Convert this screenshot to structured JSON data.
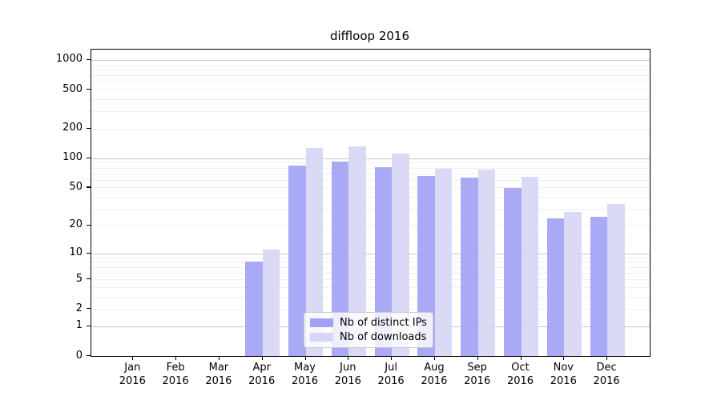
{
  "chart_data": {
    "type": "bar",
    "title": "diffloop 2016",
    "categories": [
      "Jan 2016",
      "Feb 2016",
      "Mar 2016",
      "Apr 2016",
      "May 2016",
      "Jun 2016",
      "Jul 2016",
      "Aug 2016",
      "Sep 2016",
      "Oct 2016",
      "Nov 2016",
      "Dec 2016"
    ],
    "month_labels": [
      "Jan",
      "Feb",
      "Mar",
      "Apr",
      "May",
      "Jun",
      "Jul",
      "Aug",
      "Sep",
      "Oct",
      "Nov",
      "Dec"
    ],
    "year_label": "2016",
    "series": [
      {
        "name": "Nb of distinct IPs",
        "color": "#a0a0f4",
        "values": [
          0,
          0,
          0,
          8,
          84,
          93,
          81,
          66,
          63,
          49,
          24,
          25
        ]
      },
      {
        "name": "Nb of downloads",
        "color": "#d6d6f6",
        "values": [
          0,
          0,
          0,
          11,
          128,
          132,
          112,
          78,
          77,
          65,
          28,
          34
        ]
      }
    ],
    "xlabel": "",
    "ylabel": "",
    "y_axis": {
      "scale": "log1p",
      "tick_values": [
        0,
        1,
        2,
        5,
        10,
        20,
        50,
        100,
        200,
        500,
        1000
      ],
      "ylim": [
        0,
        1200
      ]
    },
    "grid": {
      "on": true,
      "major_values": [
        1,
        10,
        100,
        1000
      ],
      "minor_values": [
        2,
        3,
        4,
        5,
        6,
        7,
        8,
        9,
        20,
        30,
        40,
        50,
        60,
        70,
        80,
        90,
        200,
        300,
        400,
        500,
        600,
        700,
        800,
        900
      ],
      "major_color": "#c9c9c9",
      "minor_color": "#efefef"
    },
    "legend_position": "lower center"
  }
}
